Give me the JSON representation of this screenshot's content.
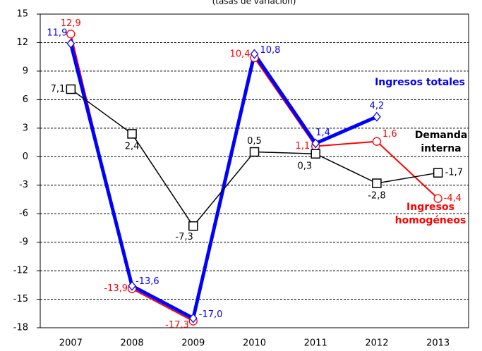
{
  "chart_data": {
    "type": "line",
    "title": "(tasas de variación)",
    "categories": [
      "2007",
      "2008",
      "2009",
      "2010",
      "2011",
      "2012",
      "2013"
    ],
    "ylim": [
      -18,
      15
    ],
    "yticks": [
      -18,
      -15,
      -12,
      -9,
      -6,
      -3,
      0,
      3,
      6,
      9,
      12,
      15
    ],
    "grid": true,
    "series": [
      {
        "name": "Ingresos homogéneos",
        "color": "#ff0000",
        "marker": "circle",
        "values": [
          12.9,
          -13.9,
          -17.3,
          10.4,
          1.1,
          1.6,
          -4.4
        ],
        "value_labels": [
          "12,9",
          "-13,9",
          "-17,3",
          "10,4",
          "1,1",
          "1,6",
          "-4,4"
        ]
      },
      {
        "name": "Ingresos totales",
        "color": "#0000ff",
        "marker": "diamond",
        "values": [
          11.9,
          -13.6,
          -17.0,
          10.8,
          1.4,
          4.2,
          null
        ],
        "value_labels": [
          "11,9",
          "-13,6",
          "-17,0",
          "10,8",
          "1,4",
          "4,2",
          null
        ]
      },
      {
        "name": "Demanda interna",
        "color": "#000000",
        "marker": "square",
        "values": [
          7.1,
          2.4,
          -7.3,
          0.5,
          0.3,
          -2.8,
          -1.7
        ],
        "value_labels": [
          "7,1",
          "2,4",
          "-7,3",
          "0,5",
          "0,3",
          "-2,8",
          "-1,7"
        ]
      }
    ]
  }
}
